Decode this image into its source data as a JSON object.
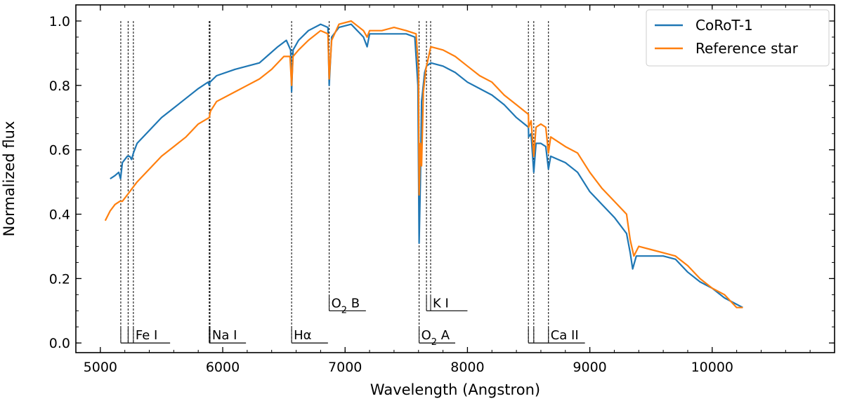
{
  "chart_data": {
    "type": "line",
    "xlabel": "Wavelength (Angstron)",
    "ylabel": "Normalized flux",
    "xlim": [
      4800,
      11000
    ],
    "ylim": [
      -0.03,
      1.05
    ],
    "xticks": [
      5000,
      6000,
      7000,
      8000,
      9000,
      10000
    ],
    "yticks": [
      0.0,
      0.2,
      0.4,
      0.6,
      0.8,
      1.0
    ],
    "ytick_labels": [
      "0.0",
      "0.2",
      "0.4",
      "0.6",
      "0.8",
      "1.0"
    ],
    "grid": false,
    "legend": "top-right",
    "series": [
      {
        "name": "CoRoT-1",
        "color": "#1f77b4",
        "points": [
          [
            5080,
            0.51
          ],
          [
            5120,
            0.52
          ],
          [
            5150,
            0.53
          ],
          [
            5165,
            0.51
          ],
          [
            5180,
            0.56
          ],
          [
            5220,
            0.58
          ],
          [
            5240,
            0.58
          ],
          [
            5255,
            0.57
          ],
          [
            5270,
            0.59
          ],
          [
            5300,
            0.62
          ],
          [
            5400,
            0.66
          ],
          [
            5500,
            0.7
          ],
          [
            5600,
            0.73
          ],
          [
            5700,
            0.76
          ],
          [
            5800,
            0.79
          ],
          [
            5880,
            0.81
          ],
          [
            5890,
            0.8
          ],
          [
            5896,
            0.81
          ],
          [
            5950,
            0.83
          ],
          [
            6100,
            0.85
          ],
          [
            6300,
            0.87
          ],
          [
            6450,
            0.92
          ],
          [
            6520,
            0.94
          ],
          [
            6555,
            0.91
          ],
          [
            6563,
            0.78
          ],
          [
            6575,
            0.91
          ],
          [
            6620,
            0.94
          ],
          [
            6700,
            0.97
          ],
          [
            6800,
            0.99
          ],
          [
            6860,
            0.98
          ],
          [
            6870,
            0.8
          ],
          [
            6890,
            0.95
          ],
          [
            6950,
            0.98
          ],
          [
            7050,
            0.99
          ],
          [
            7150,
            0.95
          ],
          [
            7180,
            0.92
          ],
          [
            7200,
            0.96
          ],
          [
            7300,
            0.96
          ],
          [
            7400,
            0.96
          ],
          [
            7500,
            0.96
          ],
          [
            7570,
            0.95
          ],
          [
            7595,
            0.8
          ],
          [
            7605,
            0.31
          ],
          [
            7615,
            0.5
          ],
          [
            7625,
            0.75
          ],
          [
            7650,
            0.84
          ],
          [
            7665,
            0.86
          ],
          [
            7700,
            0.87
          ],
          [
            7800,
            0.86
          ],
          [
            7900,
            0.84
          ],
          [
            8000,
            0.81
          ],
          [
            8100,
            0.79
          ],
          [
            8200,
            0.77
          ],
          [
            8300,
            0.74
          ],
          [
            8400,
            0.7
          ],
          [
            8498,
            0.67
          ],
          [
            8500,
            0.64
          ],
          [
            8520,
            0.65
          ],
          [
            8542,
            0.53
          ],
          [
            8560,
            0.62
          ],
          [
            8600,
            0.62
          ],
          [
            8640,
            0.61
          ],
          [
            8662,
            0.54
          ],
          [
            8680,
            0.58
          ],
          [
            8800,
            0.56
          ],
          [
            8900,
            0.53
          ],
          [
            9000,
            0.47
          ],
          [
            9100,
            0.43
          ],
          [
            9200,
            0.39
          ],
          [
            9300,
            0.34
          ],
          [
            9330,
            0.28
          ],
          [
            9350,
            0.23
          ],
          [
            9380,
            0.27
          ],
          [
            9500,
            0.27
          ],
          [
            9600,
            0.27
          ],
          [
            9700,
            0.26
          ],
          [
            9800,
            0.22
          ],
          [
            9900,
            0.19
          ],
          [
            10000,
            0.17
          ],
          [
            10100,
            0.14
          ],
          [
            10200,
            0.12
          ],
          [
            10250,
            0.11
          ]
        ]
      },
      {
        "name": "Reference star",
        "color": "#ff7f0e",
        "points": [
          [
            5040,
            0.38
          ],
          [
            5080,
            0.41
          ],
          [
            5120,
            0.43
          ],
          [
            5160,
            0.44
          ],
          [
            5180,
            0.44
          ],
          [
            5220,
            0.46
          ],
          [
            5260,
            0.48
          ],
          [
            5300,
            0.5
          ],
          [
            5400,
            0.54
          ],
          [
            5500,
            0.58
          ],
          [
            5600,
            0.61
          ],
          [
            5700,
            0.64
          ],
          [
            5800,
            0.68
          ],
          [
            5890,
            0.7
          ],
          [
            5900,
            0.72
          ],
          [
            5950,
            0.75
          ],
          [
            6100,
            0.78
          ],
          [
            6200,
            0.8
          ],
          [
            6300,
            0.82
          ],
          [
            6400,
            0.85
          ],
          [
            6500,
            0.89
          ],
          [
            6550,
            0.89
          ],
          [
            6563,
            0.8
          ],
          [
            6575,
            0.89
          ],
          [
            6620,
            0.91
          ],
          [
            6700,
            0.94
          ],
          [
            6800,
            0.97
          ],
          [
            6860,
            0.96
          ],
          [
            6870,
            0.82
          ],
          [
            6890,
            0.94
          ],
          [
            6950,
            0.99
          ],
          [
            7050,
            1.0
          ],
          [
            7150,
            0.97
          ],
          [
            7180,
            0.95
          ],
          [
            7200,
            0.97
          ],
          [
            7300,
            0.97
          ],
          [
            7400,
            0.98
          ],
          [
            7500,
            0.97
          ],
          [
            7580,
            0.96
          ],
          [
            7600,
            0.85
          ],
          [
            7605,
            0.46
          ],
          [
            7615,
            0.62
          ],
          [
            7625,
            0.55
          ],
          [
            7640,
            0.78
          ],
          [
            7660,
            0.85
          ],
          [
            7700,
            0.92
          ],
          [
            7800,
            0.91
          ],
          [
            7900,
            0.89
          ],
          [
            8000,
            0.86
          ],
          [
            8100,
            0.83
          ],
          [
            8200,
            0.81
          ],
          [
            8300,
            0.77
          ],
          [
            8400,
            0.74
          ],
          [
            8498,
            0.71
          ],
          [
            8500,
            0.67
          ],
          [
            8520,
            0.69
          ],
          [
            8542,
            0.58
          ],
          [
            8560,
            0.67
          ],
          [
            8600,
            0.68
          ],
          [
            8640,
            0.67
          ],
          [
            8662,
            0.59
          ],
          [
            8680,
            0.64
          ],
          [
            8800,
            0.61
          ],
          [
            8900,
            0.59
          ],
          [
            9000,
            0.53
          ],
          [
            9100,
            0.48
          ],
          [
            9200,
            0.44
          ],
          [
            9300,
            0.4
          ],
          [
            9330,
            0.32
          ],
          [
            9360,
            0.27
          ],
          [
            9400,
            0.3
          ],
          [
            9500,
            0.29
          ],
          [
            9600,
            0.28
          ],
          [
            9700,
            0.27
          ],
          [
            9800,
            0.24
          ],
          [
            9900,
            0.2
          ],
          [
            10000,
            0.17
          ],
          [
            10100,
            0.15
          ],
          [
            10200,
            0.11
          ],
          [
            10250,
            0.11
          ]
        ]
      }
    ],
    "spectral_lines": [
      {
        "label": "Fe I",
        "label_html": "Fe I",
        "positions": [
          5167,
          5227,
          5270
        ],
        "bracket_y": 0.0,
        "bracket_end": 5570
      },
      {
        "label": "Na I",
        "label_html": "Na I",
        "positions": [
          5890,
          5896
        ],
        "bracket_y": 0.0,
        "bracket_end": 6190
      },
      {
        "label": "Hα",
        "label_html": "Hα",
        "positions": [
          6563
        ],
        "bracket_y": 0.0,
        "bracket_end": 6860
      },
      {
        "label": "O2 B",
        "label_html": "O<tspan baseline-shift='sub' font-size='13'>2</tspan> B",
        "positions": [
          6870
        ],
        "bracket_y": 0.1,
        "bracket_end": 7170
      },
      {
        "label": "O2 A",
        "label_html": "O<tspan baseline-shift='sub' font-size='13'>2</tspan> A",
        "positions": [
          7605
        ],
        "bracket_y": 0.0,
        "bracket_end": 7900
      },
      {
        "label": "K I",
        "label_html": "K I",
        "positions": [
          7665,
          7699
        ],
        "bracket_y": 0.1,
        "bracket_end": 8000
      },
      {
        "label": "Ca II",
        "label_html": "Ca II",
        "positions": [
          8498,
          8542,
          8662
        ],
        "bracket_y": 0.0,
        "bracket_end": 8960
      }
    ]
  }
}
